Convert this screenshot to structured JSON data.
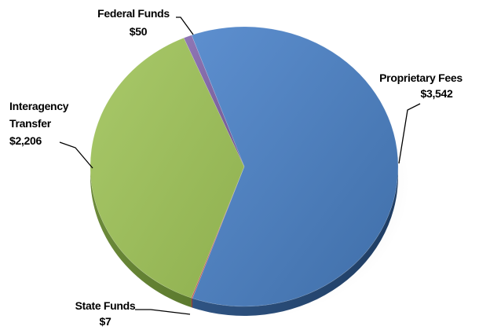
{
  "chart_data": {
    "type": "pie",
    "title": "",
    "slices": [
      {
        "name": "Proprietary Fees",
        "display_value": "$3,542",
        "value": 3542,
        "color": "#4f81bd"
      },
      {
        "name": "State Funds",
        "display_value": "$7",
        "value": 7,
        "color": "#c0504d"
      },
      {
        "name": "Interagency Transfer",
        "display_value": "$2,206",
        "value": 2206,
        "color": "#9bbb59"
      },
      {
        "name": "Federal Funds",
        "display_value": "$50",
        "value": 50,
        "color": "#8064a2"
      }
    ],
    "legend": "none",
    "style": "3d"
  }
}
